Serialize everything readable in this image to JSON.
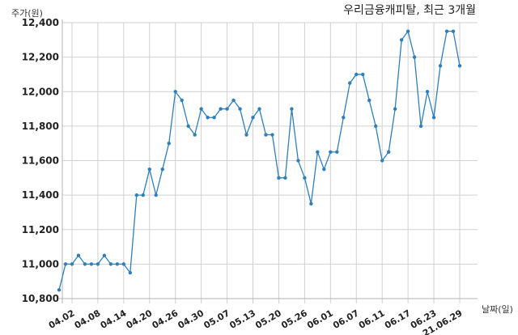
{
  "chart_data": {
    "type": "line",
    "title": "우리금융캐피탈, 최근 3개월",
    "ylabel": "주가(원)",
    "xlabel": "날짜(일)",
    "ylim": [
      10800,
      12400
    ],
    "yticks": [
      10800,
      11000,
      11200,
      11400,
      11600,
      11800,
      12000,
      12200,
      12400
    ],
    "ytick_labels": [
      "10,800",
      "11,000",
      "11,200",
      "11,400",
      "11,600",
      "11,800",
      "12,000",
      "12,200",
      "12,400"
    ],
    "xtick_labels": [
      "04.02",
      "04.08",
      "04.14",
      "04.20",
      "04.26",
      "04.30",
      "05.07",
      "05.13",
      "05.20",
      "05.26",
      "06.01",
      "06.07",
      "06.11",
      "06.17",
      "06.23",
      "21.06.29"
    ],
    "xtick_index": [
      2,
      6,
      10,
      14,
      18,
      22,
      26,
      30,
      34,
      38,
      42,
      46,
      50,
      54,
      58,
      62
    ],
    "grid": true,
    "series": [
      {
        "values": [
          10850,
          11000,
          11000,
          11050,
          11000,
          11000,
          11000,
          11050,
          11000,
          11000,
          11000,
          10950,
          11400,
          11400,
          11550,
          11400,
          11550,
          11700,
          12000,
          11950,
          11800,
          11750,
          11900,
          11850,
          11850,
          11900,
          11900,
          11950,
          11900,
          11750,
          11850,
          11900,
          11750,
          11750,
          11500,
          11500,
          11900,
          11600,
          11500,
          11350,
          11650,
          11550,
          11650,
          11650,
          11850,
          12050,
          12100,
          12100,
          11950,
          11800,
          11600,
          11650,
          11900,
          12300,
          12350,
          12200,
          11800,
          12000,
          11850,
          12150,
          12350,
          12350,
          12150
        ],
        "color": "#2f7fb8"
      }
    ]
  }
}
